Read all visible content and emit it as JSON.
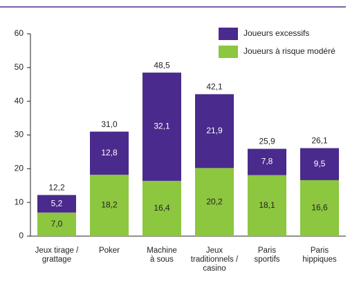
{
  "chart_data": {
    "type": "stacked-bar",
    "categories": [
      "Jeux tirage /\ngrattage",
      "Poker",
      "Machine\nà sous",
      "Jeux\ntraditionnels /\ncasino",
      "Paris\nsportifs",
      "Paris\nhippiques"
    ],
    "series": [
      {
        "name": "Joueurs à risque modéré",
        "color": "#8dc63f",
        "label_color": "#222222",
        "values": [
          7.0,
          18.2,
          16.4,
          20.2,
          18.1,
          16.6
        ],
        "value_labels": [
          "7,0",
          "18,2",
          "16,4",
          "20,2",
          "18,1",
          "16,6"
        ]
      },
      {
        "name": "Joueurs excessifs",
        "color": "#4a2a8c",
        "label_color": "#ffffff",
        "values": [
          5.2,
          12.8,
          32.1,
          21.9,
          7.8,
          9.5
        ],
        "value_labels": [
          "5,2",
          "12,8",
          "32,1",
          "21,9",
          "7,8",
          "9,5"
        ]
      }
    ],
    "totals": [
      12.2,
      31.0,
      48.5,
      42.1,
      25.9,
      26.1
    ],
    "total_labels": [
      "12,2",
      "31,0",
      "48,5",
      "42,1",
      "25,9",
      "26,1"
    ],
    "ylim": [
      0,
      60
    ],
    "yticks": [
      0,
      10,
      20,
      30,
      40,
      50,
      60
    ],
    "grid": false,
    "legend": "top-right"
  }
}
